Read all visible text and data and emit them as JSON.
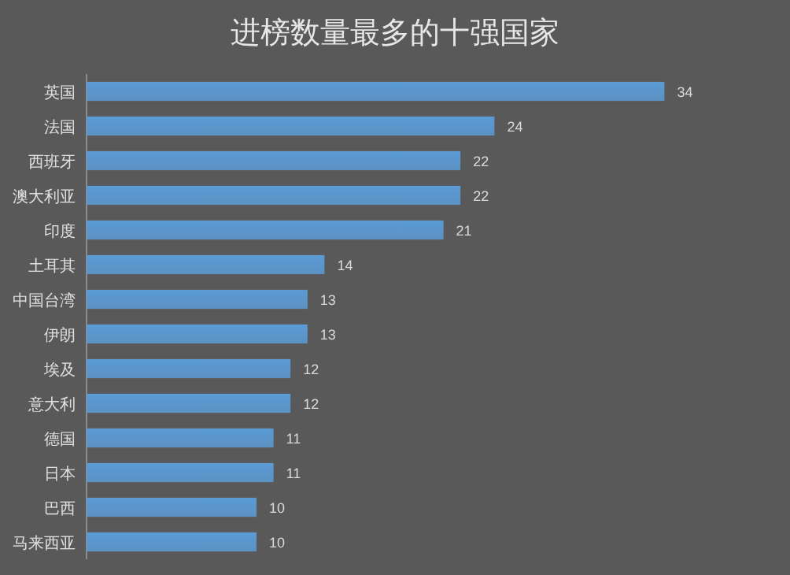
{
  "chart_data": {
    "type": "bar",
    "orientation": "horizontal",
    "title": "进榜数量最多的十强国家",
    "categories": [
      "英国",
      "法国",
      "西班牙",
      "澳大利亚",
      "印度",
      "土耳其",
      "中国台湾",
      "伊朗",
      "埃及",
      "意大利",
      "德国",
      "日本",
      "巴西",
      "马来西亚"
    ],
    "values": [
      34,
      24,
      22,
      22,
      21,
      14,
      13,
      13,
      12,
      12,
      11,
      11,
      10,
      10
    ],
    "color": "#5b9bd5",
    "data_labels": true,
    "tick_labels": "y"
  }
}
